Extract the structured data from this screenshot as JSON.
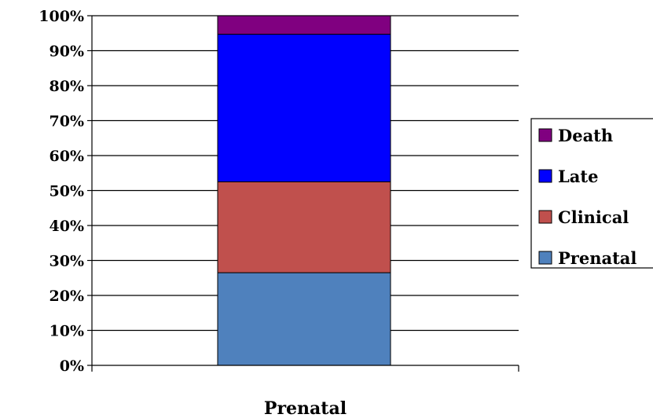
{
  "chart_data": {
    "type": "bar",
    "stacked": true,
    "normalized": true,
    "categories": [
      "Prenatal"
    ],
    "series": [
      {
        "name": "Prenatal",
        "values": [
          26.5
        ],
        "color": "#4f81bd"
      },
      {
        "name": "Clinical",
        "values": [
          26.0
        ],
        "color": "#c0504d"
      },
      {
        "name": "Late",
        "values": [
          42.2
        ],
        "color": "#0000ff"
      },
      {
        "name": "Death",
        "values": [
          5.3
        ],
        "color": "#800080"
      }
    ],
    "y_ticks": [
      "0%",
      "10%",
      "20%",
      "30%",
      "40%",
      "50%",
      "60%",
      "70%",
      "80%",
      "90%",
      "100%"
    ],
    "ylim": [
      0,
      100
    ],
    "grid": true,
    "legend_position": "right",
    "legend_order": [
      "Death",
      "Late",
      "Clinical",
      "Prenatal"
    ],
    "title": "",
    "xlabel": "",
    "ylabel": ""
  }
}
